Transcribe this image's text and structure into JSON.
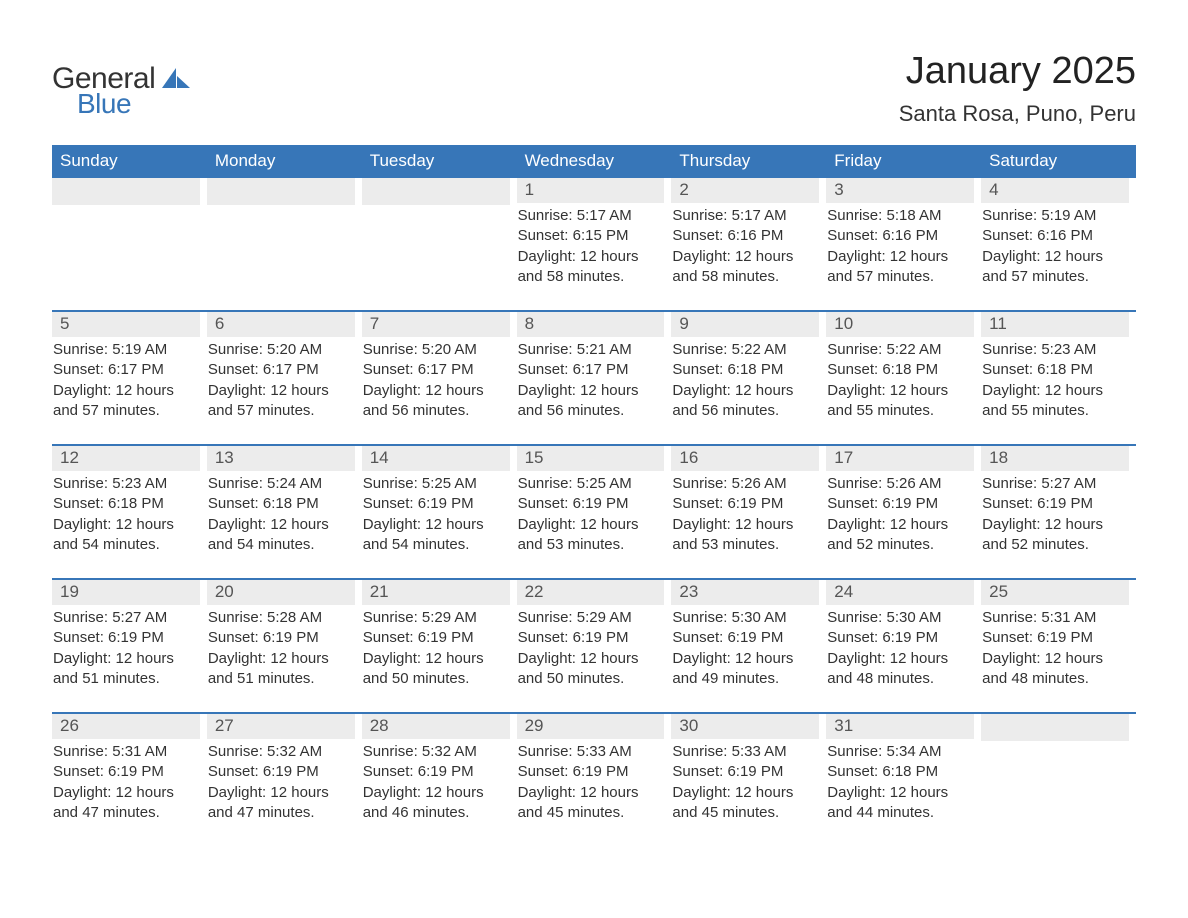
{
  "logo": {
    "text_general": "General",
    "text_blue": "Blue",
    "general_color": "#333333",
    "blue_color": "#3776b8",
    "sail_color": "#3776b8"
  },
  "header": {
    "month_title": "January 2025",
    "location": "Santa Rosa, Puno, Peru"
  },
  "calendar": {
    "header_bg": "#3776b8",
    "header_text_color": "#ffffff",
    "daynum_bg": "#ececec",
    "daynum_color": "#555555",
    "week_border_color": "#3776b8",
    "text_color": "#333333",
    "background_color": "#ffffff",
    "font_family": "Arial",
    "header_fontsize": 17,
    "daynum_fontsize": 17,
    "body_fontsize": 15,
    "columns": [
      "Sunday",
      "Monday",
      "Tuesday",
      "Wednesday",
      "Thursday",
      "Friday",
      "Saturday"
    ],
    "weeks": [
      [
        {
          "day": "",
          "sunrise": "",
          "sunset": "",
          "daylight": ""
        },
        {
          "day": "",
          "sunrise": "",
          "sunset": "",
          "daylight": ""
        },
        {
          "day": "",
          "sunrise": "",
          "sunset": "",
          "daylight": ""
        },
        {
          "day": "1",
          "sunrise": "Sunrise: 5:17 AM",
          "sunset": "Sunset: 6:15 PM",
          "daylight": "Daylight: 12 hours and 58 minutes."
        },
        {
          "day": "2",
          "sunrise": "Sunrise: 5:17 AM",
          "sunset": "Sunset: 6:16 PM",
          "daylight": "Daylight: 12 hours and 58 minutes."
        },
        {
          "day": "3",
          "sunrise": "Sunrise: 5:18 AM",
          "sunset": "Sunset: 6:16 PM",
          "daylight": "Daylight: 12 hours and 57 minutes."
        },
        {
          "day": "4",
          "sunrise": "Sunrise: 5:19 AM",
          "sunset": "Sunset: 6:16 PM",
          "daylight": "Daylight: 12 hours and 57 minutes."
        }
      ],
      [
        {
          "day": "5",
          "sunrise": "Sunrise: 5:19 AM",
          "sunset": "Sunset: 6:17 PM",
          "daylight": "Daylight: 12 hours and 57 minutes."
        },
        {
          "day": "6",
          "sunrise": "Sunrise: 5:20 AM",
          "sunset": "Sunset: 6:17 PM",
          "daylight": "Daylight: 12 hours and 57 minutes."
        },
        {
          "day": "7",
          "sunrise": "Sunrise: 5:20 AM",
          "sunset": "Sunset: 6:17 PM",
          "daylight": "Daylight: 12 hours and 56 minutes."
        },
        {
          "day": "8",
          "sunrise": "Sunrise: 5:21 AM",
          "sunset": "Sunset: 6:17 PM",
          "daylight": "Daylight: 12 hours and 56 minutes."
        },
        {
          "day": "9",
          "sunrise": "Sunrise: 5:22 AM",
          "sunset": "Sunset: 6:18 PM",
          "daylight": "Daylight: 12 hours and 56 minutes."
        },
        {
          "day": "10",
          "sunrise": "Sunrise: 5:22 AM",
          "sunset": "Sunset: 6:18 PM",
          "daylight": "Daylight: 12 hours and 55 minutes."
        },
        {
          "day": "11",
          "sunrise": "Sunrise: 5:23 AM",
          "sunset": "Sunset: 6:18 PM",
          "daylight": "Daylight: 12 hours and 55 minutes."
        }
      ],
      [
        {
          "day": "12",
          "sunrise": "Sunrise: 5:23 AM",
          "sunset": "Sunset: 6:18 PM",
          "daylight": "Daylight: 12 hours and 54 minutes."
        },
        {
          "day": "13",
          "sunrise": "Sunrise: 5:24 AM",
          "sunset": "Sunset: 6:18 PM",
          "daylight": "Daylight: 12 hours and 54 minutes."
        },
        {
          "day": "14",
          "sunrise": "Sunrise: 5:25 AM",
          "sunset": "Sunset: 6:19 PM",
          "daylight": "Daylight: 12 hours and 54 minutes."
        },
        {
          "day": "15",
          "sunrise": "Sunrise: 5:25 AM",
          "sunset": "Sunset: 6:19 PM",
          "daylight": "Daylight: 12 hours and 53 minutes."
        },
        {
          "day": "16",
          "sunrise": "Sunrise: 5:26 AM",
          "sunset": "Sunset: 6:19 PM",
          "daylight": "Daylight: 12 hours and 53 minutes."
        },
        {
          "day": "17",
          "sunrise": "Sunrise: 5:26 AM",
          "sunset": "Sunset: 6:19 PM",
          "daylight": "Daylight: 12 hours and 52 minutes."
        },
        {
          "day": "18",
          "sunrise": "Sunrise: 5:27 AM",
          "sunset": "Sunset: 6:19 PM",
          "daylight": "Daylight: 12 hours and 52 minutes."
        }
      ],
      [
        {
          "day": "19",
          "sunrise": "Sunrise: 5:27 AM",
          "sunset": "Sunset: 6:19 PM",
          "daylight": "Daylight: 12 hours and 51 minutes."
        },
        {
          "day": "20",
          "sunrise": "Sunrise: 5:28 AM",
          "sunset": "Sunset: 6:19 PM",
          "daylight": "Daylight: 12 hours and 51 minutes."
        },
        {
          "day": "21",
          "sunrise": "Sunrise: 5:29 AM",
          "sunset": "Sunset: 6:19 PM",
          "daylight": "Daylight: 12 hours and 50 minutes."
        },
        {
          "day": "22",
          "sunrise": "Sunrise: 5:29 AM",
          "sunset": "Sunset: 6:19 PM",
          "daylight": "Daylight: 12 hours and 50 minutes."
        },
        {
          "day": "23",
          "sunrise": "Sunrise: 5:30 AM",
          "sunset": "Sunset: 6:19 PM",
          "daylight": "Daylight: 12 hours and 49 minutes."
        },
        {
          "day": "24",
          "sunrise": "Sunrise: 5:30 AM",
          "sunset": "Sunset: 6:19 PM",
          "daylight": "Daylight: 12 hours and 48 minutes."
        },
        {
          "day": "25",
          "sunrise": "Sunrise: 5:31 AM",
          "sunset": "Sunset: 6:19 PM",
          "daylight": "Daylight: 12 hours and 48 minutes."
        }
      ],
      [
        {
          "day": "26",
          "sunrise": "Sunrise: 5:31 AM",
          "sunset": "Sunset: 6:19 PM",
          "daylight": "Daylight: 12 hours and 47 minutes."
        },
        {
          "day": "27",
          "sunrise": "Sunrise: 5:32 AM",
          "sunset": "Sunset: 6:19 PM",
          "daylight": "Daylight: 12 hours and 47 minutes."
        },
        {
          "day": "28",
          "sunrise": "Sunrise: 5:32 AM",
          "sunset": "Sunset: 6:19 PM",
          "daylight": "Daylight: 12 hours and 46 minutes."
        },
        {
          "day": "29",
          "sunrise": "Sunrise: 5:33 AM",
          "sunset": "Sunset: 6:19 PM",
          "daylight": "Daylight: 12 hours and 45 minutes."
        },
        {
          "day": "30",
          "sunrise": "Sunrise: 5:33 AM",
          "sunset": "Sunset: 6:19 PM",
          "daylight": "Daylight: 12 hours and 45 minutes."
        },
        {
          "day": "31",
          "sunrise": "Sunrise: 5:34 AM",
          "sunset": "Sunset: 6:18 PM",
          "daylight": "Daylight: 12 hours and 44 minutes."
        },
        {
          "day": "",
          "sunrise": "",
          "sunset": "",
          "daylight": ""
        }
      ]
    ]
  }
}
